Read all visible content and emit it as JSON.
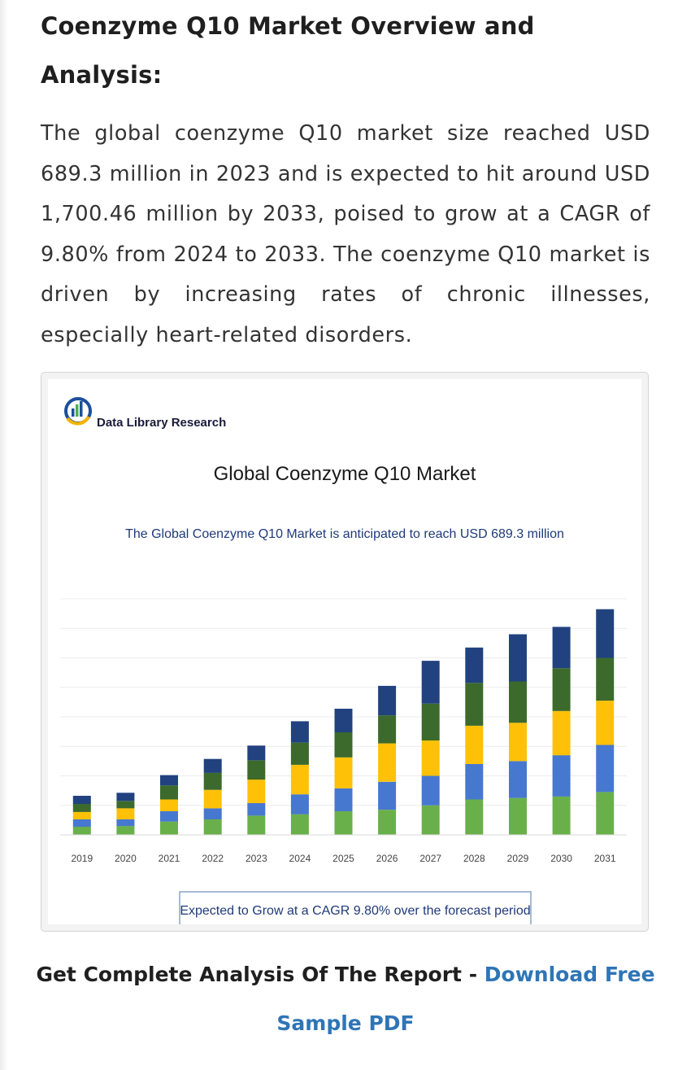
{
  "article": {
    "heading": "Coenzyme Q10 Market Overview and Analysis:",
    "paragraph": "The global coenzyme Q10 market size reached USD 689.3 million in 2023 and is expected to hit around USD 1,700.46 million by 2033, poised to grow at a CAGR of 9.80% from 2024 to 2033. The coenzyme Q10 market is driven by increasing rates of chronic illnesses, especially heart-related disorders.",
    "cta_prefix": "Get Complete Analysis Of The Report - ",
    "cta_link": "Download Free Sample PDF"
  },
  "figure": {
    "logo_text": "Data Library Research",
    "logo_icon": "bar-chart-circle-icon"
  },
  "colors": {
    "link": "#2e75b6",
    "navy": "#21427f",
    "dark_green": "#3b6a2c",
    "yellow": "#fec107",
    "blue": "#4778cf",
    "green": "#6ab04a"
  },
  "chart_data": {
    "type": "bar",
    "stacked": true,
    "title": "Global Coenzyme Q10 Market",
    "subtitle": "The Global Coenzyme Q10 Market is anticipated to reach USD 689.3 million",
    "annotation": "Expected to Grow at a CAGR 9.80% over the forecast period",
    "categories": [
      "2019",
      "2020",
      "2021",
      "2022",
      "2023",
      "2024",
      "2025",
      "2026",
      "2027",
      "2028",
      "2029",
      "2030",
      "2031"
    ],
    "series": [
      {
        "color": "#6ab04a",
        "values": [
          0.55,
          0.6,
          0.9,
          1.05,
          1.3,
          1.4,
          1.6,
          1.7,
          2.0,
          2.4,
          2.5,
          2.6,
          2.9
        ]
      },
      {
        "color": "#4778cf",
        "values": [
          0.5,
          0.45,
          0.7,
          0.75,
          0.85,
          1.35,
          1.55,
          1.9,
          2.0,
          2.4,
          2.5,
          2.8,
          3.2
        ]
      },
      {
        "color": "#fec107",
        "values": [
          0.5,
          0.75,
          0.8,
          1.25,
          1.6,
          2.0,
          2.1,
          2.6,
          2.4,
          2.6,
          2.6,
          3.0,
          3.0
        ]
      },
      {
        "color": "#3b6a2c",
        "values": [
          0.55,
          0.5,
          0.95,
          1.15,
          1.3,
          1.5,
          1.7,
          1.9,
          2.5,
          2.9,
          2.8,
          2.9,
          2.9
        ]
      },
      {
        "color": "#21427f",
        "values": [
          0.55,
          0.55,
          0.7,
          0.95,
          1.0,
          1.45,
          1.6,
          2.0,
          2.9,
          2.4,
          3.2,
          2.8,
          3.3
        ]
      }
    ],
    "ylim": [
      0,
      16
    ],
    "grid": true,
    "legend": "none"
  }
}
